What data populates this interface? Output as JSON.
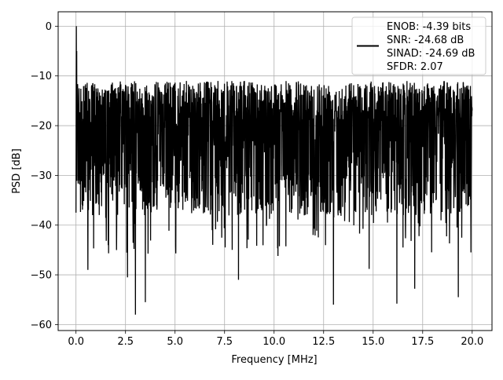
{
  "chart_data": {
    "type": "line",
    "title": "",
    "xlabel": "Frequency [MHz]",
    "ylabel": "PSD [dB]",
    "xlim": [
      -0.9,
      21.0
    ],
    "ylim": [
      -61.2,
      2.9
    ],
    "x_ticks": [
      0.0,
      2.5,
      5.0,
      7.5,
      10.0,
      12.5,
      15.0,
      17.5,
      20.0
    ],
    "x_tick_labels": [
      "0.0",
      "2.5",
      "5.0",
      "7.5",
      "10.0",
      "12.5",
      "15.0",
      "17.5",
      "20.0"
    ],
    "y_ticks": [
      0,
      -10,
      -20,
      -30,
      -40,
      -50,
      -60
    ],
    "y_tick_labels": [
      "0",
      "−10",
      "−20",
      "−30",
      "−40",
      "−50",
      "−60"
    ],
    "grid": true,
    "legend_position": "top-right",
    "series": [
      {
        "color": "#000000",
        "x_range": [
          0.0,
          20.0
        ],
        "peak": {
          "x": 0.0,
          "y": 0.0
        },
        "upper_envelope_approx": -10,
        "floor_approx": -35,
        "notable_minima": [
          {
            "x": 3.0,
            "y": -58.0
          },
          {
            "x": 3.5,
            "y": -55.5
          },
          {
            "x": 2.6,
            "y": -50.5
          },
          {
            "x": 8.2,
            "y": -51.0
          },
          {
            "x": 13.0,
            "y": -56.0
          },
          {
            "x": 16.2,
            "y": -55.8
          },
          {
            "x": 17.1,
            "y": -52.8
          },
          {
            "x": 19.3,
            "y": -54.5
          },
          {
            "x": 0.6,
            "y": -49.0
          },
          {
            "x": 14.8,
            "y": -48.8
          },
          {
            "x": 10.2,
            "y": -46.2
          }
        ]
      }
    ],
    "legend_lines": [
      "ENOB: -4.39 bits",
      "SNR: -24.68 dB",
      "SINAD: -24.69 dB",
      "SFDR: 2.07"
    ]
  }
}
